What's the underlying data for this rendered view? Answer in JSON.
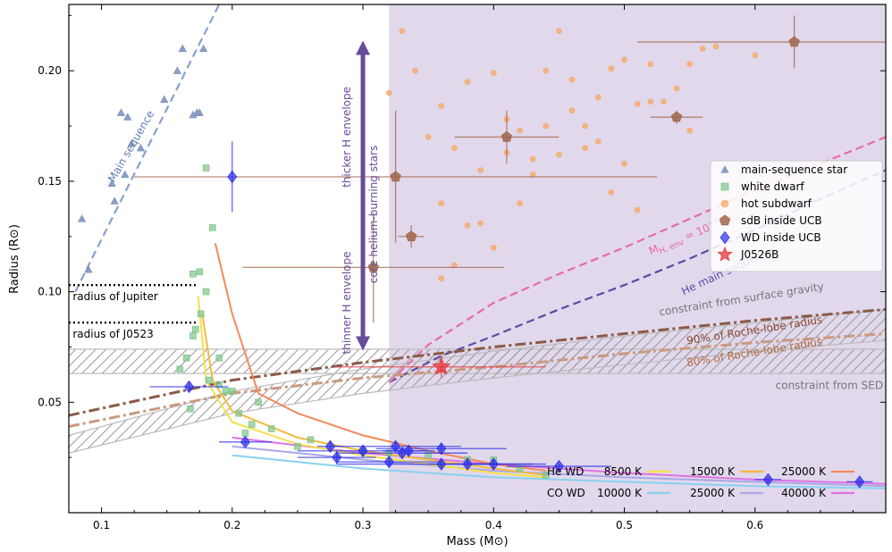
{
  "chart_data": {
    "type": "scatter",
    "xlabel": "Mass (M⊙)",
    "ylabel": "Radius (R⊙)",
    "xlim": [
      0.075,
      0.7
    ],
    "ylim": [
      0.0,
      0.23
    ],
    "xticks": [
      "0.1",
      "0.2",
      "0.3",
      "0.4",
      "0.5",
      "0.6"
    ],
    "xtick_values": [
      0.1,
      0.2,
      0.3,
      0.4,
      0.5,
      0.6
    ],
    "yticks": [
      "0.05",
      "0.10",
      "0.15",
      "0.20"
    ],
    "ytick_values": [
      0.05,
      0.1,
      0.15,
      0.2
    ],
    "legend_position": "right",
    "legend": [
      {
        "label": "main-sequence star",
        "marker": "triangle",
        "color": "#7f95bd"
      },
      {
        "label": "white dwarf",
        "marker": "square",
        "color": "#7fc58a"
      },
      {
        "label": "hot subdwarf",
        "marker": "circle",
        "color": "#f4a862"
      },
      {
        "label": "sdB inside UCB",
        "marker": "pentagon",
        "color": "#a0674a"
      },
      {
        "label": "WD inside UCB",
        "marker": "diamond",
        "color": "#2b2ee8"
      },
      {
        "label": "J0526B",
        "marker": "star",
        "color": "#e8343c"
      }
    ],
    "shaded_region": {
      "x": [
        0.32,
        0.7
      ],
      "y": [
        0.0,
        0.23
      ],
      "color": "#e1d8ec"
    },
    "series": [
      {
        "name": "main-sequence star",
        "marker": "triangle",
        "color": "#7f95bd",
        "x": [
          0.085,
          0.09,
          0.108,
          0.118,
          0.115,
          0.123,
          0.13,
          0.11,
          0.148,
          0.158,
          0.162,
          0.17,
          0.173,
          0.175,
          0.178,
          0.12
        ],
        "y": [
          0.133,
          0.11,
          0.149,
          0.153,
          0.181,
          0.167,
          0.165,
          0.141,
          0.187,
          0.2,
          0.21,
          0.18,
          0.181,
          0.181,
          0.21,
          0.179
        ]
      },
      {
        "name": "white dwarf",
        "marker": "square",
        "color": "#7fc58a",
        "x": [
          0.165,
          0.17,
          0.175,
          0.16,
          0.18,
          0.185,
          0.19,
          0.2,
          0.205,
          0.215,
          0.22,
          0.23,
          0.172,
          0.176,
          0.168,
          0.182,
          0.195,
          0.21,
          0.25,
          0.26,
          0.3,
          0.32,
          0.35,
          0.38,
          0.4,
          0.42,
          0.44,
          0.18,
          0.17,
          0.19
        ],
        "y": [
          0.07,
          0.108,
          0.109,
          0.065,
          0.1,
          0.129,
          0.058,
          0.055,
          0.045,
          0.04,
          0.05,
          0.038,
          0.083,
          0.09,
          0.047,
          0.06,
          0.055,
          0.036,
          0.03,
          0.033,
          0.028,
          0.027,
          0.026,
          0.024,
          0.024,
          0.02,
          0.017,
          0.156,
          0.08,
          0.07
        ]
      },
      {
        "name": "hot subdwarf",
        "marker": "circle",
        "color": "#f4a862",
        "x": [
          0.32,
          0.34,
          0.36,
          0.37,
          0.38,
          0.39,
          0.4,
          0.41,
          0.42,
          0.43,
          0.44,
          0.45,
          0.46,
          0.47,
          0.48,
          0.49,
          0.5,
          0.51,
          0.52,
          0.53,
          0.54,
          0.55,
          0.56,
          0.57,
          0.33,
          0.35,
          0.36,
          0.38,
          0.4,
          0.42,
          0.43,
          0.45,
          0.47,
          0.48,
          0.5,
          0.52,
          0.36,
          0.37,
          0.39,
          0.41,
          0.44,
          0.46,
          0.49,
          0.51,
          0.55,
          0.6
        ],
        "y": [
          0.19,
          0.2,
          0.184,
          0.165,
          0.195,
          0.155,
          0.199,
          0.178,
          0.173,
          0.16,
          0.2,
          0.218,
          0.196,
          0.165,
          0.188,
          0.201,
          0.205,
          0.185,
          0.203,
          0.186,
          0.192,
          0.173,
          0.21,
          0.211,
          0.218,
          0.17,
          0.14,
          0.13,
          0.12,
          0.14,
          0.153,
          0.162,
          0.175,
          0.168,
          0.158,
          0.186,
          0.106,
          0.112,
          0.131,
          0.163,
          0.175,
          0.182,
          0.145,
          0.137,
          0.203,
          0.207
        ]
      },
      {
        "name": "sdB inside UCB",
        "marker": "pentagon",
        "color": "#a0674a",
        "x": [
          0.325,
          0.308,
          0.337,
          0.41,
          0.54,
          0.63
        ],
        "y": [
          0.152,
          0.111,
          0.125,
          0.17,
          0.179,
          0.213
        ],
        "xerr": [
          0.2,
          0.1,
          0.01,
          0.04,
          0.02,
          0.12
        ],
        "yerr": [
          0.03,
          0.025,
          0.005,
          0.012,
          0.003,
          0.012
        ]
      },
      {
        "name": "WD inside UCB",
        "marker": "diamond",
        "color": "#2b2ee8",
        "x": [
          0.2,
          0.167,
          0.21,
          0.275,
          0.28,
          0.3,
          0.32,
          0.325,
          0.33,
          0.335,
          0.36,
          0.36,
          0.38,
          0.4,
          0.45,
          0.61,
          0.68
        ],
        "y": [
          0.152,
          0.057,
          0.032,
          0.03,
          0.025,
          0.028,
          0.023,
          0.03,
          0.027,
          0.028,
          0.029,
          0.022,
          0.022,
          0.022,
          0.021,
          0.015,
          0.014
        ],
        "xerr": [
          0.0,
          0.03,
          0.02,
          0.01,
          0.03,
          0.05,
          0.04,
          0.05,
          0.05,
          0.02,
          0.05,
          0.08,
          0.03,
          0.03,
          0.04,
          0.01,
          0.01
        ],
        "yerr": [
          0.016,
          0.002,
          0.001,
          0.002,
          0.003,
          0.002,
          0.002,
          0.002,
          0.002,
          0.002,
          0.002,
          0.002,
          0.002,
          0.002,
          0.001,
          0.001,
          0.001
        ]
      },
      {
        "name": "J0526B",
        "marker": "star",
        "color": "#e8343c",
        "x": [
          0.36
        ],
        "y": [
          0.066
        ],
        "xerr": [
          0.08
        ],
        "yerr": [
          0.005
        ]
      }
    ],
    "tracks": {
      "header": {
        "he": "He WD",
        "co": "CO WD"
      },
      "he": [
        {
          "label": "8500 K",
          "color": "#f6e04a",
          "x": [
            0.174,
            0.18,
            0.2,
            0.25,
            0.3,
            0.35,
            0.4,
            0.44
          ],
          "y": [
            0.098,
            0.06,
            0.041,
            0.031,
            0.026,
            0.022,
            0.018,
            0.016
          ]
        },
        {
          "label": "15000 K",
          "color": "#f4b93e",
          "x": [
            0.177,
            0.185,
            0.2,
            0.25,
            0.3,
            0.35,
            0.4,
            0.44
          ],
          "y": [
            0.09,
            0.06,
            0.046,
            0.034,
            0.028,
            0.024,
            0.02,
            0.017
          ]
        },
        {
          "label": "25000 K",
          "color": "#f4895a",
          "x": [
            0.187,
            0.2,
            0.22,
            0.25,
            0.3,
            0.35,
            0.4,
            0.44
          ],
          "y": [
            0.122,
            0.09,
            0.054,
            0.045,
            0.035,
            0.028,
            0.022,
            0.019
          ]
        }
      ],
      "co": [
        {
          "label": "10000 K",
          "color": "#8ad0f0",
          "x": [
            0.2,
            0.3,
            0.4,
            0.5,
            0.6,
            0.7
          ],
          "y": [
            0.026,
            0.02,
            0.016,
            0.014,
            0.012,
            0.011
          ]
        },
        {
          "label": "25000 K",
          "color": "#a9a7e6",
          "x": [
            0.2,
            0.3,
            0.4,
            0.5,
            0.6,
            0.7
          ],
          "y": [
            0.03,
            0.024,
            0.019,
            0.016,
            0.014,
            0.012
          ]
        },
        {
          "label": "40000 K",
          "color": "#dd74e0",
          "x": [
            0.2,
            0.3,
            0.4,
            0.5,
            0.6,
            0.7
          ],
          "y": [
            0.034,
            0.027,
            0.022,
            0.018,
            0.015,
            0.013
          ]
        }
      ]
    },
    "reference_lines": [
      {
        "name": "Main sequence",
        "color": "#86a2d0",
        "dash": "dashed",
        "x": [
          0.08,
          0.19
        ],
        "y": [
          0.1,
          0.23
        ]
      },
      {
        "name": "He main sequence",
        "color": "#5b4aa3",
        "dash": "dashed",
        "x": [
          0.32,
          0.36,
          0.4,
          0.45,
          0.5,
          0.55,
          0.6,
          0.65,
          0.7
        ],
        "y": [
          0.059,
          0.071,
          0.08,
          0.092,
          0.103,
          0.115,
          0.128,
          0.142,
          0.155
        ]
      },
      {
        "name": "M H,env = 10^-6 M⊙",
        "color": "#e86aa5",
        "dash": "dashed",
        "x": [
          0.32,
          0.35,
          0.4,
          0.45,
          0.5,
          0.55,
          0.6,
          0.65,
          0.7
        ],
        "y": [
          0.059,
          0.076,
          0.095,
          0.108,
          0.12,
          0.133,
          0.146,
          0.158,
          0.17
        ]
      },
      {
        "name": "90% of Roche-lobe radius",
        "color": "#8a5a48",
        "dash": "dashdot",
        "x": [
          0.075,
          0.2,
          0.3,
          0.4,
          0.5,
          0.6,
          0.7
        ],
        "y": [
          0.044,
          0.06,
          0.068,
          0.075,
          0.081,
          0.087,
          0.092
        ]
      },
      {
        "name": "80% of Roche-lobe radius",
        "color": "#c99a80",
        "dash": "dashdot",
        "x": [
          0.075,
          0.2,
          0.3,
          0.4,
          0.5,
          0.6,
          0.7
        ],
        "y": [
          0.039,
          0.054,
          0.061,
          0.066,
          0.072,
          0.077,
          0.081
        ]
      },
      {
        "name": "radius of Jupiter",
        "color": "#000000",
        "dash": "dotted",
        "x": [
          0.075,
          0.172
        ],
        "y": [
          0.103,
          0.103
        ]
      },
      {
        "name": "radius of J0523",
        "color": "#000000",
        "dash": "dotted",
        "x": [
          0.075,
          0.172
        ],
        "y": [
          0.086,
          0.086
        ]
      }
    ],
    "bands": [
      {
        "name": "constraint from SED",
        "y": [
          0.063,
          0.074
        ]
      },
      {
        "name": "constraint from surface gravity",
        "x": [
          0.075,
          0.2,
          0.3,
          0.4,
          0.5,
          0.6,
          0.7
        ],
        "y_low": [
          0.027,
          0.045,
          0.054,
          0.061,
          0.067,
          0.073,
          0.078
        ],
        "y_high": [
          0.035,
          0.055,
          0.065,
          0.073,
          0.08,
          0.086,
          0.092
        ]
      }
    ],
    "annotations": {
      "arrow_up_text": "thicker H envelope",
      "arrow_mid_text": "core helium-burning stars",
      "arrow_down_text": "thinner H envelope",
      "arrow_x": 0.3,
      "arrow_y": [
        0.075,
        0.212
      ],
      "main_seq": "Main sequence",
      "he_main_seq": "He main sequence",
      "menv": "M",
      "menv_sub": "H, env",
      "menv_rest": " = 10",
      "menv_exp": "−6",
      "menv_unit": " M⊙",
      "jupiter": "radius of Jupiter",
      "j0523": "radius of J0523",
      "sed": "constraint from SED",
      "gravity": "constraint from surface gravity",
      "roche90": "90% of Roche-lobe radius",
      "roche80": "80% of Roche-lobe radius"
    }
  }
}
